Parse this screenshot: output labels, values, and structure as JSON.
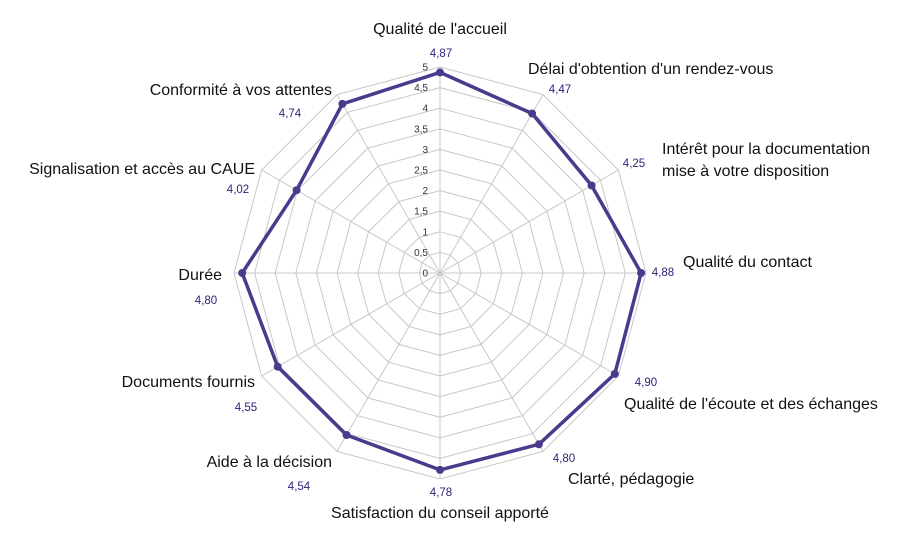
{
  "chart_data": {
    "type": "radar",
    "rmax": 5,
    "tick_step": 0.5,
    "ticks": [
      "0",
      "0,5",
      "1",
      "1,5",
      "2",
      "2,5",
      "3",
      "3,5",
      "4",
      "4,5",
      "5"
    ],
    "categories": [
      "Qualité de l'accueil",
      "Délai d'obtention d'un rendez-vous",
      "Intérêt pour la documentation\nmise à votre disposition",
      "Qualité du contact",
      "Qualité de l'écoute et des échanges",
      "Clarté, pédagogie",
      "Satisfaction du conseil apporté",
      "Aide à la décision",
      "Documents fournis",
      "Durée",
      "Signalisation et accès au CAUE",
      "Conformité à vos attentes"
    ],
    "values": [
      4.87,
      4.47,
      4.25,
      4.88,
      4.9,
      4.8,
      4.78,
      4.54,
      4.55,
      4.8,
      4.02,
      4.74
    ],
    "value_labels": [
      "4,87",
      "4,47",
      "4,25",
      "4,88",
      "4,90",
      "4,80",
      "4,78",
      "4,54",
      "4,55",
      "4,80",
      "4,02",
      "4,74"
    ],
    "grid": true,
    "colors": {
      "series": "#4b3a8c",
      "value_text": "#2e1f78",
      "grid": "#c8c8c8"
    }
  }
}
